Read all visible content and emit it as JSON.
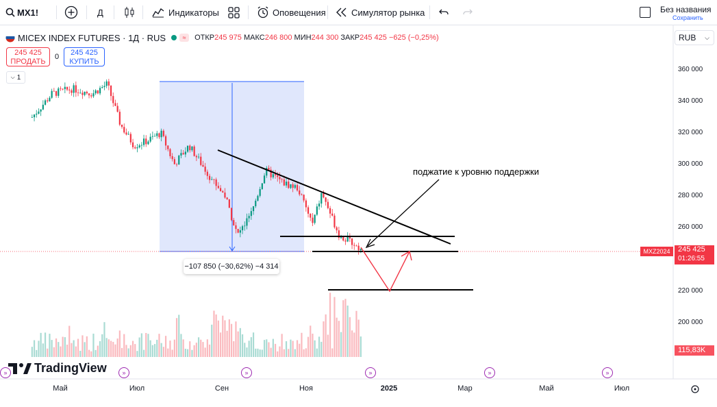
{
  "toolbar": {
    "symbol": "MX1!",
    "interval": "Д",
    "indicators": "Индикаторы",
    "alerts": "Оповещения",
    "replay": "Симулятор рынка",
    "layout_name": "Без названия",
    "layout_status": "Сохранить"
  },
  "legend": {
    "title": "MICEX INDEX FUTURES · 1Д · RUS",
    "open_label": "ОТКР",
    "open": "245 975",
    "high_label": "МАКС",
    "high": "246 800",
    "low_label": "МИН",
    "low": "244 300",
    "close_label": "ЗАКР",
    "close": "245 425",
    "change": "−625 (−0,25%)"
  },
  "trade": {
    "sell_price": "245 425",
    "sell_label": "ПРОДАТЬ",
    "spread": "0",
    "buy_price": "245 425",
    "buy_label": "КУПИТЬ",
    "indicator_count": "1"
  },
  "currency": "RUB",
  "price_axis": [
    "360 000",
    "340 000",
    "320 000",
    "300 000",
    "280 000",
    "260 000",
    "220 000",
    "200 000"
  ],
  "time_axis": [
    "Май",
    "Июл",
    "Сен",
    "Ноя",
    "2025",
    "Мар",
    "Май",
    "Июл"
  ],
  "tags": {
    "symbol_tag": "MXZ2024",
    "last_price": "245 425",
    "countdown": "01:26:55",
    "volume": "115,83K"
  },
  "measure_label": "−107 850 (−30,62%) −4 314",
  "annotation": "поджатие к уровню поддержки",
  "logo_text": "TradingView",
  "colors": {
    "up": "#089981",
    "down": "#f23645",
    "accent": "#2962ff",
    "measure_fill": "#dbe3fb"
  },
  "chart_data": {
    "type": "candlestick",
    "x_axis_ticks": [
      "Май",
      "Июл",
      "Сен",
      "Ноя",
      "2025",
      "Мар",
      "Май",
      "Июл"
    ],
    "y_axis_ticks": [
      360000,
      340000,
      320000,
      300000,
      280000,
      260000,
      220000,
      200000
    ],
    "last_price": 245425,
    "close_path": [
      {
        "x": "2024-04-10",
        "y": 330000
      },
      {
        "x": "2024-04-25",
        "y": 345000
      },
      {
        "x": "2024-05-10",
        "y": 348000
      },
      {
        "x": "2024-05-25",
        "y": 345000
      },
      {
        "x": "2024-06-05",
        "y": 351000
      },
      {
        "x": "2024-06-15",
        "y": 325000
      },
      {
        "x": "2024-06-25",
        "y": 312000
      },
      {
        "x": "2024-07-05",
        "y": 315000
      },
      {
        "x": "2024-07-15",
        "y": 320000
      },
      {
        "x": "2024-07-25",
        "y": 300000
      },
      {
        "x": "2024-08-05",
        "y": 312000
      },
      {
        "x": "2024-08-20",
        "y": 293000
      },
      {
        "x": "2024-09-01",
        "y": 280000
      },
      {
        "x": "2024-09-10",
        "y": 255000
      },
      {
        "x": "2024-09-20",
        "y": 268000
      },
      {
        "x": "2024-10-01",
        "y": 296000
      },
      {
        "x": "2024-10-15",
        "y": 288000
      },
      {
        "x": "2024-10-25",
        "y": 285000
      },
      {
        "x": "2024-11-05",
        "y": 262000
      },
      {
        "x": "2024-11-12",
        "y": 282000
      },
      {
        "x": "2024-11-25",
        "y": 255000
      },
      {
        "x": "2024-12-05",
        "y": 250000
      },
      {
        "x": "2024-12-12",
        "y": 245425
      }
    ],
    "volume_label": "115,83K",
    "measure": {
      "from": "2024-08-01",
      "to": "2024-11-01",
      "change": "−107 850 (−30,62%)",
      "bars": "−4 314"
    }
  }
}
